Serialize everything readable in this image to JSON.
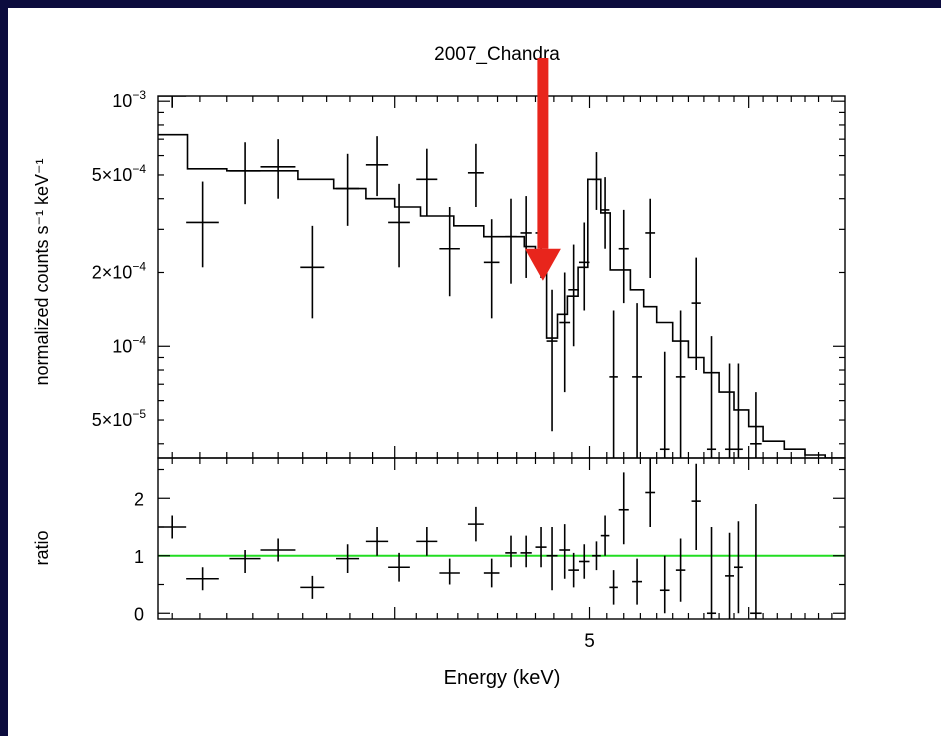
{
  "chart_data": {
    "type": "scatter",
    "title": "2007_Chandra",
    "xlabel": "Energy (keV)",
    "colors": {
      "model": "#000000",
      "data": "#000000",
      "ratio_line": "#22dd22",
      "arrow": "#e8251c",
      "background": "#0c0c3e"
    },
    "x_axis": {
      "scale": "log",
      "tick_labels": [
        "5"
      ],
      "xlim": [
        3.05,
        6.7
      ]
    },
    "top_panel": {
      "ylabel": "normalized counts s⁻¹ keV⁻¹",
      "y_scale": "log",
      "ylim": [
        3.5e-05,
        0.00105
      ],
      "yticks": [
        {
          "value": 0.001,
          "label": "10",
          "exp": "−3",
          "pre": ""
        },
        {
          "value": 0.0005,
          "label": "5×10",
          "exp": "−4",
          "pre": ""
        },
        {
          "value": 0.0002,
          "label": "2×10",
          "exp": "−4",
          "pre": ""
        },
        {
          "value": 0.0001,
          "label": "10",
          "exp": "−4",
          "pre": ""
        },
        {
          "value": 5e-05,
          "label": "5×10",
          "exp": "−5",
          "pre": ""
        }
      ],
      "data": [
        {
          "x": 3.1,
          "xerr": 0.05,
          "y": 0.00105,
          "ylo": 0.00094,
          "yhi": 0.00125
        },
        {
          "x": 3.21,
          "xerr": 0.06,
          "y": 0.00032,
          "ylo": 0.00021,
          "yhi": 0.00047
        },
        {
          "x": 3.37,
          "xerr": 0.06,
          "y": 0.00052,
          "ylo": 0.00038,
          "yhi": 0.00068
        },
        {
          "x": 3.5,
          "xerr": 0.07,
          "y": 0.00054,
          "ylo": 0.0004,
          "yhi": 0.0007
        },
        {
          "x": 3.64,
          "xerr": 0.05,
          "y": 0.00021,
          "ylo": 0.00013,
          "yhi": 0.00031
        },
        {
          "x": 3.79,
          "xerr": 0.05,
          "y": 0.00044,
          "ylo": 0.00031,
          "yhi": 0.00061
        },
        {
          "x": 3.92,
          "xerr": 0.05,
          "y": 0.00055,
          "ylo": 0.00041,
          "yhi": 0.00072
        },
        {
          "x": 4.02,
          "xerr": 0.05,
          "y": 0.00032,
          "ylo": 0.00021,
          "yhi": 0.00046
        },
        {
          "x": 4.15,
          "xerr": 0.05,
          "y": 0.00048,
          "ylo": 0.00034,
          "yhi": 0.00064
        },
        {
          "x": 4.26,
          "xerr": 0.05,
          "y": 0.00025,
          "ylo": 0.00016,
          "yhi": 0.00037
        },
        {
          "x": 4.39,
          "xerr": 0.04,
          "y": 0.00051,
          "ylo": 0.00037,
          "yhi": 0.00067
        },
        {
          "x": 4.47,
          "xerr": 0.04,
          "y": 0.00022,
          "ylo": 0.00013,
          "yhi": 0.00033
        },
        {
          "x": 4.57,
          "xerr": 0.03,
          "y": 0.00028,
          "ylo": 0.00018,
          "yhi": 0.0004
        },
        {
          "x": 4.65,
          "xerr": 0.03,
          "y": 0.00029,
          "ylo": 0.00019,
          "yhi": 0.00041
        },
        {
          "x": 4.73,
          "xerr": 0.03,
          "y": 0.00029,
          "ylo": 0.00019,
          "yhi": 0.00041
        },
        {
          "x": 4.79,
          "xerr": 0.03,
          "y": 0.000105,
          "ylo": 4.5e-05,
          "yhi": 0.00017
        },
        {
          "x": 4.86,
          "xerr": 0.03,
          "y": 0.000125,
          "ylo": 6.5e-05,
          "yhi": 0.0002
        },
        {
          "x": 4.91,
          "xerr": 0.03,
          "y": 0.00017,
          "ylo": 0.0001,
          "yhi": 0.00026
        },
        {
          "x": 4.97,
          "xerr": 0.03,
          "y": 0.00022,
          "ylo": 0.00014,
          "yhi": 0.00032
        },
        {
          "x": 5.04,
          "xerr": 0.025,
          "y": 0.00048,
          "ylo": 0.00036,
          "yhi": 0.00062
        },
        {
          "x": 5.09,
          "xerr": 0.025,
          "y": 0.00036,
          "ylo": 0.00025,
          "yhi": 0.00049
        },
        {
          "x": 5.14,
          "xerr": 0.025,
          "y": 7.5e-05,
          "ylo": 2e-05,
          "yhi": 0.00014
        },
        {
          "x": 5.2,
          "xerr": 0.03,
          "y": 0.00025,
          "ylo": 0.00015,
          "yhi": 0.00036
        },
        {
          "x": 5.28,
          "xerr": 0.03,
          "y": 7.5e-05,
          "ylo": 2e-05,
          "yhi": 0.00015
        },
        {
          "x": 5.36,
          "xerr": 0.03,
          "y": 0.00029,
          "ylo": 0.00019,
          "yhi": 0.0004
        },
        {
          "x": 5.45,
          "xerr": 0.03,
          "y": 3.8e-05,
          "ylo": 1e-05,
          "yhi": 9.5e-05
        },
        {
          "x": 5.55,
          "xerr": 0.03,
          "y": 7.5e-05,
          "ylo": 2e-05,
          "yhi": 0.00014
        },
        {
          "x": 5.65,
          "xerr": 0.03,
          "y": 0.00015,
          "ylo": 8e-05,
          "yhi": 0.00023
        },
        {
          "x": 5.75,
          "xerr": 0.03,
          "y": 3.8e-05,
          "ylo": 1e-05,
          "yhi": 0.00011
        },
        {
          "x": 5.87,
          "xerr": 0.03,
          "y": 3.8e-05,
          "ylo": 1e-05,
          "yhi": 8.5e-05
        },
        {
          "x": 5.93,
          "xerr": 0.03,
          "y": 3.8e-05,
          "ylo": 1e-05,
          "yhi": 8.5e-05
        },
        {
          "x": 6.05,
          "xerr": 0.04,
          "y": 4e-05,
          "ylo": 1e-05,
          "yhi": 6.5e-05
        }
      ],
      "model_steps": [
        {
          "x": 3.05,
          "y": 0.00073
        },
        {
          "x": 3.155,
          "y": 0.00053
        },
        {
          "x": 3.3,
          "y": 0.00052
        },
        {
          "x": 3.58,
          "y": 0.00048
        },
        {
          "x": 3.73,
          "y": 0.00044
        },
        {
          "x": 3.87,
          "y": 0.0004
        },
        {
          "x": 4.0,
          "y": 0.00037
        },
        {
          "x": 4.12,
          "y": 0.00034
        },
        {
          "x": 4.28,
          "y": 0.00031
        },
        {
          "x": 4.43,
          "y": 0.00028
        },
        {
          "x": 4.64,
          "y": 0.000255
        },
        {
          "x": 4.7,
          "y": 0.00023
        },
        {
          "x": 4.76,
          "y": 0.000108
        },
        {
          "x": 4.82,
          "y": 0.000135
        },
        {
          "x": 4.875,
          "y": 0.00016
        },
        {
          "x": 4.935,
          "y": 0.00021
        },
        {
          "x": 4.99,
          "y": 0.00048
        },
        {
          "x": 5.065,
          "y": 0.00035
        },
        {
          "x": 5.12,
          "y": 0.000205
        },
        {
          "x": 5.24,
          "y": 0.00017
        },
        {
          "x": 5.32,
          "y": 0.000145
        },
        {
          "x": 5.4,
          "y": 0.000125
        },
        {
          "x": 5.5,
          "y": 0.000105
        },
        {
          "x": 5.6,
          "y": 9e-05
        },
        {
          "x": 5.7,
          "y": 7.8e-05
        },
        {
          "x": 5.8,
          "y": 6.5e-05
        },
        {
          "x": 5.9,
          "y": 5.5e-05
        },
        {
          "x": 6.0,
          "y": 4.7e-05
        },
        {
          "x": 6.1,
          "y": 4.1e-05
        },
        {
          "x": 6.25,
          "y": 3.8e-05
        },
        {
          "x": 6.4,
          "y": 3.6e-05
        },
        {
          "x": 6.55,
          "y": 3.5e-05
        },
        {
          "x": 6.7,
          "y": 3.5e-05
        }
      ]
    },
    "bottom_panel": {
      "ylabel": "ratio",
      "y_scale": "linear",
      "ylim": [
        -0.1,
        2.7
      ],
      "yticks": [
        0,
        1,
        2
      ],
      "reference_line": 1,
      "data": [
        {
          "x": 3.1,
          "xerr": 0.05,
          "y": 1.5,
          "ylo": 1.3,
          "yhi": 1.7
        },
        {
          "x": 3.21,
          "xerr": 0.06,
          "y": 0.6,
          "ylo": 0.4,
          "yhi": 0.8
        },
        {
          "x": 3.37,
          "xerr": 0.06,
          "y": 0.95,
          "ylo": 0.7,
          "yhi": 1.1
        },
        {
          "x": 3.5,
          "xerr": 0.07,
          "y": 1.1,
          "ylo": 0.9,
          "yhi": 1.3
        },
        {
          "x": 3.64,
          "xerr": 0.05,
          "y": 0.45,
          "ylo": 0.25,
          "yhi": 0.65
        },
        {
          "x": 3.79,
          "xerr": 0.05,
          "y": 0.95,
          "ylo": 0.7,
          "yhi": 1.2
        },
        {
          "x": 3.92,
          "xerr": 0.05,
          "y": 1.25,
          "ylo": 1.0,
          "yhi": 1.5
        },
        {
          "x": 4.02,
          "xerr": 0.05,
          "y": 0.8,
          "ylo": 0.55,
          "yhi": 1.05
        },
        {
          "x": 4.15,
          "xerr": 0.05,
          "y": 1.25,
          "ylo": 1.0,
          "yhi": 1.5
        },
        {
          "x": 4.26,
          "xerr": 0.05,
          "y": 0.7,
          "ylo": 0.5,
          "yhi": 0.95
        },
        {
          "x": 4.39,
          "xerr": 0.04,
          "y": 1.55,
          "ylo": 1.25,
          "yhi": 1.85
        },
        {
          "x": 4.47,
          "xerr": 0.04,
          "y": 0.7,
          "ylo": 0.45,
          "yhi": 0.95
        },
        {
          "x": 4.57,
          "xerr": 0.03,
          "y": 1.05,
          "ylo": 0.8,
          "yhi": 1.35
        },
        {
          "x": 4.65,
          "xerr": 0.03,
          "y": 1.05,
          "ylo": 0.8,
          "yhi": 1.35
        },
        {
          "x": 4.73,
          "xerr": 0.03,
          "y": 1.15,
          "ylo": 0.8,
          "yhi": 1.5
        },
        {
          "x": 4.79,
          "xerr": 0.03,
          "y": 1.0,
          "ylo": 0.4,
          "yhi": 1.5
        },
        {
          "x": 4.86,
          "xerr": 0.03,
          "y": 1.1,
          "ylo": 0.6,
          "yhi": 1.55
        },
        {
          "x": 4.91,
          "xerr": 0.03,
          "y": 0.75,
          "ylo": 0.45,
          "yhi": 1.05
        },
        {
          "x": 4.97,
          "xerr": 0.03,
          "y": 0.9,
          "ylo": 0.6,
          "yhi": 1.2
        },
        {
          "x": 5.04,
          "xerr": 0.025,
          "y": 1.0,
          "ylo": 0.75,
          "yhi": 1.25
        },
        {
          "x": 5.09,
          "xerr": 0.025,
          "y": 1.35,
          "ylo": 1.0,
          "yhi": 1.7
        },
        {
          "x": 5.14,
          "xerr": 0.025,
          "y": 0.45,
          "ylo": 0.15,
          "yhi": 0.75
        },
        {
          "x": 5.2,
          "xerr": 0.03,
          "y": 1.8,
          "ylo": 1.2,
          "yhi": 2.45
        },
        {
          "x": 5.28,
          "xerr": 0.03,
          "y": 0.55,
          "ylo": 0.15,
          "yhi": 0.95
        },
        {
          "x": 5.36,
          "xerr": 0.03,
          "y": 2.1,
          "ylo": 1.5,
          "yhi": 2.7
        },
        {
          "x": 5.45,
          "xerr": 0.03,
          "y": 0.4,
          "ylo": 0.0,
          "yhi": 1.0
        },
        {
          "x": 5.55,
          "xerr": 0.03,
          "y": 0.75,
          "ylo": 0.2,
          "yhi": 1.3
        },
        {
          "x": 5.65,
          "xerr": 0.03,
          "y": 1.95,
          "ylo": 1.1,
          "yhi": 2.6
        },
        {
          "x": 5.75,
          "xerr": 0.03,
          "y": 0.0,
          "ylo": -0.1,
          "yhi": 1.5
        },
        {
          "x": 5.87,
          "xerr": 0.03,
          "y": 0.65,
          "ylo": -0.1,
          "yhi": 1.4
        },
        {
          "x": 5.93,
          "xerr": 0.03,
          "y": 0.8,
          "ylo": 0.0,
          "yhi": 1.6
        },
        {
          "x": 6.05,
          "xerr": 0.04,
          "y": 0.0,
          "ylo": -0.1,
          "yhi": 1.9
        }
      ]
    },
    "annotation": {
      "type": "arrow",
      "x": 4.74,
      "y_from": 0.00105,
      "y_to": 0.000185
    }
  }
}
